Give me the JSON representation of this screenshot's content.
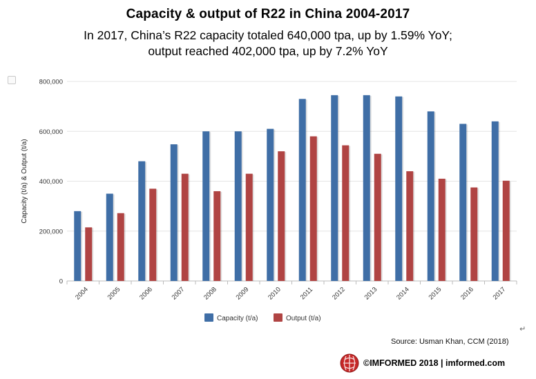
{
  "header": {
    "title": "Capacity & output of R22 in China 2004-2017",
    "subtitle_line1": "In 2017, China’s R22 capacity totaled 640,000 tpa, up by 1.59% YoY;",
    "subtitle_line2": "output reached 402,000 tpa, up by 7.2% YoY"
  },
  "chart_data": {
    "type": "bar",
    "ylabel": "Capacity (t/a) & Output (t/a)",
    "xlabel": "",
    "ylim": [
      0,
      800000
    ],
    "yticks": [
      "0",
      "200,000",
      "400,000",
      "600,000",
      "800,000"
    ],
    "ytick_values": [
      0,
      200000,
      400000,
      600000,
      800000
    ],
    "grid": true,
    "legend_position": "bottom-center",
    "categories": [
      "2004",
      "2005",
      "2006",
      "2007",
      "2008",
      "2009",
      "2010",
      "2011",
      "2012",
      "2013",
      "2014",
      "2015",
      "2016",
      "2017"
    ],
    "series": [
      {
        "name": "Capacity (t/a)",
        "color": "#3f6ea6",
        "values": [
          280000,
          350000,
          480000,
          548000,
          600000,
          600000,
          610000,
          730000,
          745000,
          745000,
          740000,
          680000,
          630000,
          640000
        ]
      },
      {
        "name": "Output (t/a)",
        "color": "#b04443",
        "values": [
          215000,
          272000,
          370000,
          430000,
          360000,
          430000,
          520000,
          580000,
          544000,
          510000,
          440000,
          410000,
          375000,
          402000
        ]
      }
    ]
  },
  "footer": {
    "source": "Source: Usman Khan, CCM  (2018)",
    "brand": "©IMFORMED 2018  | imformed.com",
    "return_glyph": "↵",
    "logo": "imformed-logo"
  }
}
